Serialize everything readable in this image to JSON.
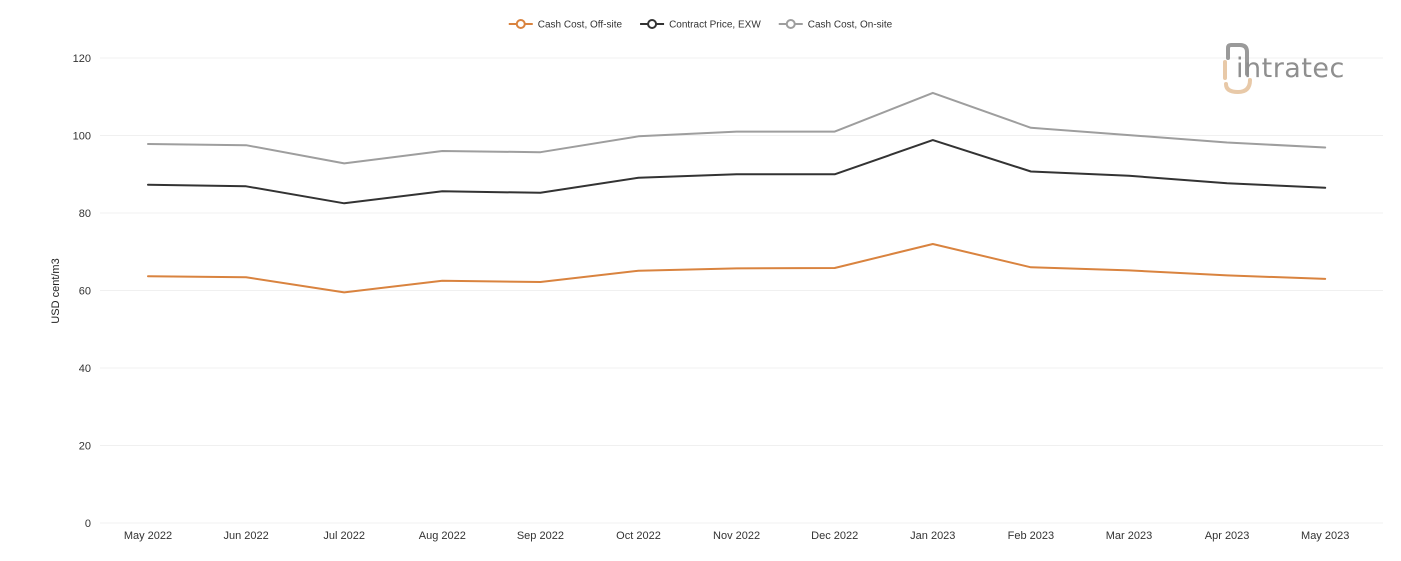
{
  "chart_data": {
    "type": "line",
    "title": "",
    "xlabel": "",
    "ylabel": "USD cent/m3",
    "ylim": [
      0,
      120
    ],
    "yticks": [
      0,
      20,
      40,
      60,
      80,
      100,
      120
    ],
    "grid": true,
    "legend_position": "top-center",
    "categories": [
      "May 2022",
      "Jun 2022",
      "Jul 2022",
      "Aug 2022",
      "Sep 2022",
      "Oct 2022",
      "Nov 2022",
      "Dec 2022",
      "Jan 2023",
      "Feb 2023",
      "Mar 2023",
      "Apr 2023",
      "May 2023"
    ],
    "series": [
      {
        "name": "Cash Cost, Off-site",
        "color": "#d9833f",
        "values": [
          63.7,
          63.4,
          59.5,
          62.5,
          62.2,
          65.1,
          65.7,
          65.8,
          72.0,
          66.0,
          65.2,
          63.9,
          63.0
        ]
      },
      {
        "name": "Contract Price, EXW",
        "color": "#333333",
        "values": [
          87.3,
          86.9,
          82.5,
          85.6,
          85.2,
          89.1,
          90.0,
          90.0,
          98.8,
          90.7,
          89.6,
          87.7,
          86.5
        ]
      },
      {
        "name": "Cash Cost, On-site",
        "color": "#9e9e9e",
        "values": [
          97.8,
          97.5,
          92.8,
          96.0,
          95.7,
          99.8,
          101.0,
          101.0,
          111.0,
          102.0,
          100.1,
          98.2,
          96.9
        ]
      }
    ]
  },
  "logo": {
    "text": "intratec",
    "mark_color": "#e8c9a8",
    "text_color": "#8f8f8f"
  }
}
